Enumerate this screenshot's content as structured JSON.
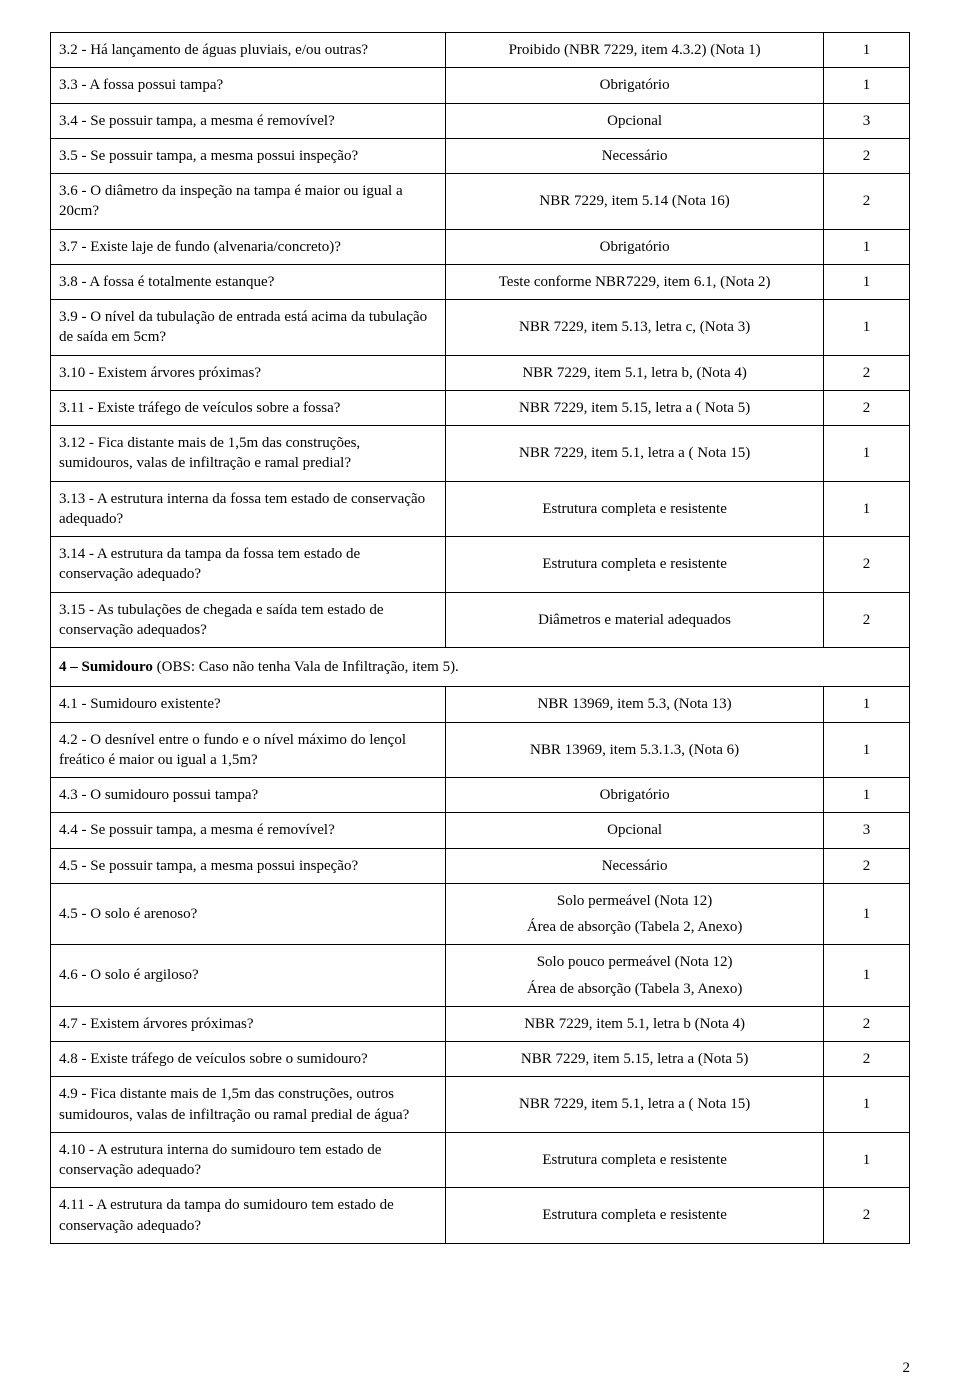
{
  "rows": [
    {
      "q": "3.2 - Há lançamento de águas pluviais, e/ou outras?",
      "r": "Proibido (NBR 7229, item 4.3.2)  (Nota 1)",
      "v": "1"
    },
    {
      "q": "3.3 - A fossa possui tampa?",
      "r": "Obrigatório",
      "v": "1"
    },
    {
      "q": "3.4 - Se possuir tampa, a mesma é removível?",
      "r": "Opcional",
      "v": "3"
    },
    {
      "q": "3.5 - Se possuir tampa, a mesma possui inspeção?",
      "r": "Necessário",
      "v": "2"
    },
    {
      "q": "3.6 - O diâmetro da inspeção na tampa é maior ou igual a 20cm?",
      "r": "NBR 7229, item 5.14 (Nota 16)",
      "v": "2"
    },
    {
      "q": "3.7 - Existe laje de fundo (alvenaria/concreto)?",
      "r": "Obrigatório",
      "v": "1"
    },
    {
      "q": "3.8 - A fossa é  totalmente estanque?",
      "r": "Teste conforme NBR7229, item 6.1,  (Nota 2)",
      "v": "1"
    },
    {
      "q": "3.9 - O nível da tubulação de entrada está acima da tubulação de saída em 5cm?",
      "r": "NBR 7229, item 5.13, letra c, (Nota 3)",
      "v": "1"
    },
    {
      "q": "3.10 - Existem árvores próximas?",
      "r": "NBR 7229, item 5.1, letra b, (Nota 4)",
      "v": "2"
    },
    {
      "q": "3.11 - Existe tráfego de veículos sobre a fossa?",
      "r": "NBR 7229, item 5.15, letra a ( Nota 5)",
      "v": "2"
    },
    {
      "q": "3.12 - Fica distante mais de 1,5m das construções, sumidouros, valas de infiltração e ramal predial?",
      "r": "NBR 7229, item 5.1, letra a ( Nota 15)",
      "v": "1"
    },
    {
      "q": "3.13  - A estrutura interna da fossa tem estado de conservação adequado?",
      "r": "Estrutura completa e resistente",
      "v": "1"
    },
    {
      "q": "3.14 - A estrutura da tampa da fossa tem estado de conservação adequado?",
      "r": "Estrutura completa e resistente",
      "v": "2"
    },
    {
      "q": "3.15 - As tubulações de chegada e saída tem estado de conservação adequados?",
      "r": "Diâmetros e material adequados",
      "v": "2"
    }
  ],
  "section4": {
    "bold": "4 – Sumidouro",
    "rest": " (OBS: Caso não tenha Vala de Infiltração, item 5)."
  },
  "rows4": [
    {
      "q": "4.1 - Sumidouro existente?",
      "r": "NBR 13969, item 5.3, (Nota 13)",
      "v": "1"
    },
    {
      "q": "4.2 - O desnível entre o fundo e o nível máximo do lençol freático é maior ou igual a 1,5m?",
      "r": "NBR 13969, item 5.3.1.3, (Nota 6)",
      "v": "1"
    },
    {
      "q": "4.3 - O sumidouro possui tampa?",
      "r": "Obrigatório",
      "v": "1"
    },
    {
      "q": "4.4 - Se possuir tampa, a mesma é removível?",
      "r": "Opcional",
      "v": "3"
    },
    {
      "q": "4.5 - Se possuir tampa, a mesma possui inspeção?",
      "r": "Necessário",
      "v": "2"
    },
    {
      "q": "4.5 - O solo é arenoso?",
      "r1": "Solo permeável (Nota 12)",
      "r2": "Área de absorção (Tabela 2, Anexo)",
      "v": "1",
      "multi": true
    },
    {
      "q": "4.6 - O solo é argiloso?",
      "r1": "Solo pouco permeável (Nota 12)",
      "r2": "Área de absorção (Tabela 3, Anexo)",
      "v": "1",
      "multi": true
    },
    {
      "q": "4.7 - Existem árvores próximas?",
      "r": "NBR 7229, item 5.1, letra b (Nota 4)",
      "v": "2"
    },
    {
      "q": "4.8 - Existe tráfego de veículos sobre o sumidouro?",
      "r": "NBR 7229, item 5.15, letra a (Nota 5)",
      "v": "2"
    },
    {
      "q": "4.9 - Fica distante mais de 1,5m das construções, outros sumidouros, valas de infiltração ou ramal predial de água?",
      "r": "NBR 7229, item 5.1, letra a ( Nota 15)",
      "v": "1"
    },
    {
      "q": "4.10 - A estrutura interna do sumidouro tem estado de conservação adequado?",
      "r": "Estrutura completa e resistente",
      "v": "1"
    },
    {
      "q": "4.11 - A estrutura da tampa do sumidouro tem estado de conservação adequado?",
      "r": "Estrutura completa e resistente",
      "v": "2"
    }
  ],
  "pageNumber": "2"
}
